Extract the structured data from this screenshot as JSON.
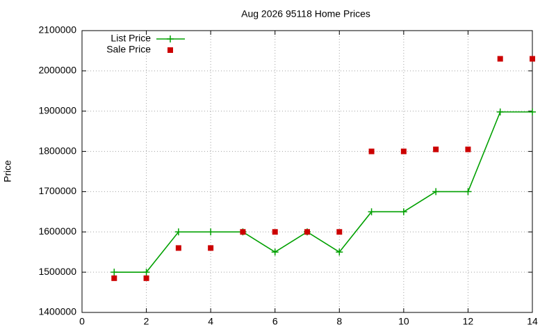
{
  "chart_data": {
    "type": "line",
    "title": "Aug 2026 95118 Home Prices",
    "y_label": "Price",
    "x": [
      1,
      2,
      3,
      4,
      5,
      6,
      7,
      8,
      9,
      10,
      11,
      12,
      13,
      14
    ],
    "series": [
      {
        "name": "List Price",
        "color": "#00a000",
        "line": true,
        "marker": "plus",
        "values": [
          1500000,
          1500000,
          1600000,
          1600000,
          1600000,
          1550000,
          1600000,
          1550000,
          1650000,
          1650000,
          1700000,
          1700000,
          1898000,
          1898000
        ]
      },
      {
        "name": "Sale Price",
        "color": "#cc0000",
        "line": false,
        "marker": "square",
        "values": [
          1485000,
          1485000,
          1560000,
          1560000,
          1600000,
          1600000,
          1600000,
          1600000,
          1800000,
          1800000,
          1805000,
          1805000,
          2030000,
          2030000
        ]
      }
    ],
    "xlim": [
      0,
      14
    ],
    "xticks": [
      0,
      2,
      4,
      6,
      8,
      10,
      12,
      14
    ],
    "ylim": [
      1400000,
      2100000
    ],
    "yticks": [
      1400000,
      1500000,
      1600000,
      1700000,
      1800000,
      1900000,
      2000000,
      2100000
    ],
    "grid": true,
    "legend": "top-left"
  }
}
